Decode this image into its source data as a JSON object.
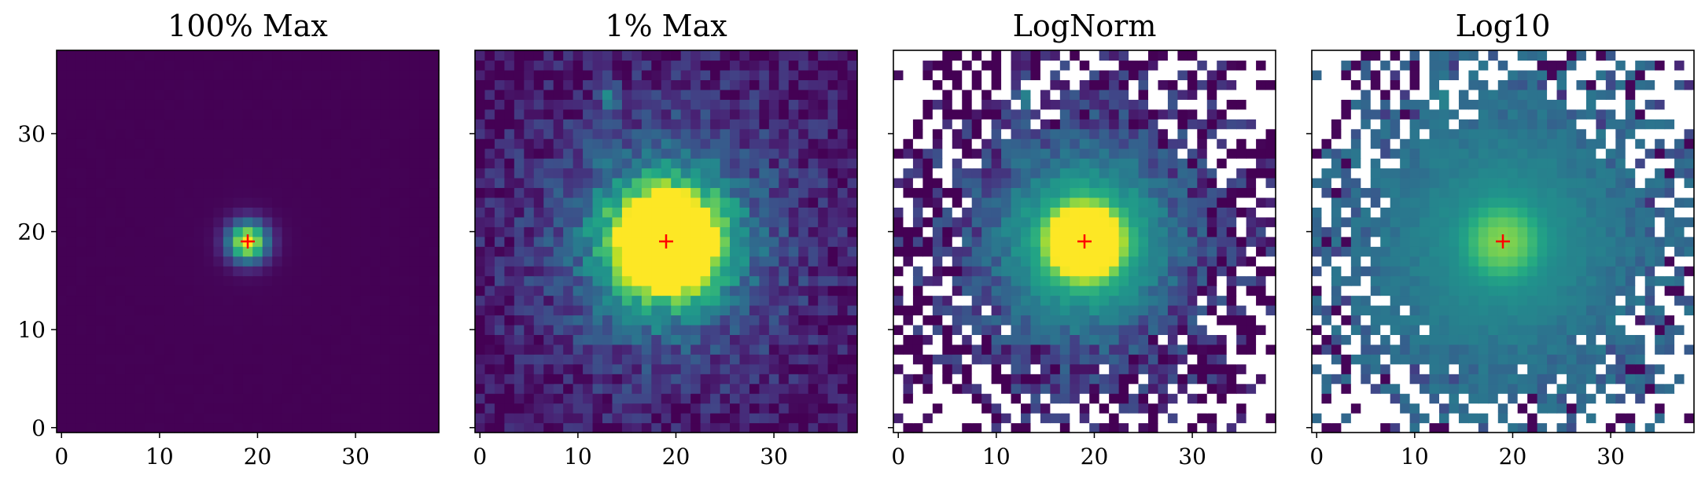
{
  "chart_data": [
    {
      "type": "heatmap",
      "title": "100% Max",
      "xlabel": "",
      "ylabel": "",
      "xlim": [
        -0.5,
        38.5
      ],
      "ylim": [
        -0.5,
        38.5
      ],
      "xticks": [
        0,
        10,
        20,
        30
      ],
      "yticks": [
        0,
        10,
        20,
        30
      ],
      "show_yticklabels": true,
      "grid": false,
      "colormap": "viridis",
      "marker": {
        "x": 19,
        "y": 19,
        "symbol": "+",
        "color": "#ff0000"
      },
      "image": {
        "size": 39,
        "center": [
          19,
          19
        ],
        "core_sigma": 1.4,
        "core_amp": 1.0,
        "halo_amp": 0.0,
        "scale": "linear",
        "vmax": 1.0,
        "has_blanks": false
      }
    },
    {
      "type": "heatmap",
      "title": "1% Max",
      "xlabel": "",
      "ylabel": "",
      "xlim": [
        -0.5,
        38.5
      ],
      "ylim": [
        -0.5,
        38.5
      ],
      "xticks": [
        0,
        10,
        20,
        30
      ],
      "yticks": [
        0,
        10,
        20,
        30
      ],
      "show_yticklabels": false,
      "grid": false,
      "colormap": "viridis",
      "marker": {
        "x": 19,
        "y": 19,
        "symbol": "+",
        "color": "#ff0000"
      },
      "image": {
        "size": 39,
        "center": [
          19,
          19
        ],
        "core_sigma": 1.4,
        "core_amp": 1.0,
        "halo_amp": 0.02,
        "scale": "linear",
        "vmax": 0.01,
        "has_blanks": false
      }
    },
    {
      "type": "heatmap",
      "title": "LogNorm",
      "xlabel": "",
      "ylabel": "",
      "xlim": [
        -0.5,
        38.5
      ],
      "ylim": [
        -0.5,
        38.5
      ],
      "xticks": [
        0,
        10,
        20,
        30
      ],
      "yticks": [
        0,
        10,
        20,
        30
      ],
      "show_yticklabels": false,
      "grid": false,
      "colormap": "viridis",
      "marker": {
        "x": 19,
        "y": 19,
        "symbol": "+",
        "color": "#ff0000"
      },
      "image": {
        "size": 39,
        "center": [
          19,
          19
        ],
        "core_sigma": 1.4,
        "core_amp": 1.0,
        "halo_amp": 0.02,
        "scale": "lognorm",
        "has_blanks": true
      }
    },
    {
      "type": "heatmap",
      "title": "Log10",
      "xlabel": "",
      "ylabel": "",
      "xlim": [
        -0.5,
        38.5
      ],
      "ylim": [
        -0.5,
        38.5
      ],
      "xticks": [
        0,
        10,
        20,
        30
      ],
      "yticks": [
        0,
        10,
        20,
        30
      ],
      "show_yticklabels": false,
      "grid": false,
      "colormap": "viridis",
      "marker": {
        "x": 19,
        "y": 19,
        "symbol": "+",
        "color": "#ff0000"
      },
      "image": {
        "size": 39,
        "center": [
          19,
          19
        ],
        "core_sigma": 1.4,
        "core_amp": 1.0,
        "halo_amp": 0.02,
        "scale": "log10",
        "has_blanks": true
      }
    }
  ]
}
